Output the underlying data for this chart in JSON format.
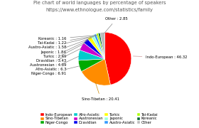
{
  "title1": "Pie chart of world languages by percentage of speakers",
  "title2": "https://www.ethnologue.com/statistics/family",
  "slices": [
    {
      "label": "Indo-European",
      "value": 46.32,
      "color": "#ff0000"
    },
    {
      "label": "Sino-Tibetan",
      "value": 20.41,
      "color": "#ff8c00"
    },
    {
      "label": "Niger-Congo",
      "value": 6.91,
      "color": "#00aa00"
    },
    {
      "label": "Afro-Asiatic",
      "value": 6.3,
      "color": "#00cccc"
    },
    {
      "label": "Austronesian",
      "value": 4.89,
      "color": "#cc00cc"
    },
    {
      "label": "Dravidian",
      "value": 3.43,
      "color": "#0000ee"
    },
    {
      "label": "Turkic",
      "value": 2.49,
      "color": "#ffff00"
    },
    {
      "label": "Japonic",
      "value": 1.84,
      "color": "#99ffdd"
    },
    {
      "label": "Austro-Asiatic",
      "value": 1.58,
      "color": "#3399ff"
    },
    {
      "label": "Tai-Kadai",
      "value": 1.22,
      "color": "#aaff00"
    },
    {
      "label": "Koreanic",
      "value": 1.16,
      "color": "#006633"
    },
    {
      "label": "Other",
      "value": 2.85,
      "color": "#bbbbbb"
    }
  ],
  "title_fontsize": 4.8,
  "label_fontsize": 3.8,
  "legend_fontsize": 3.8
}
